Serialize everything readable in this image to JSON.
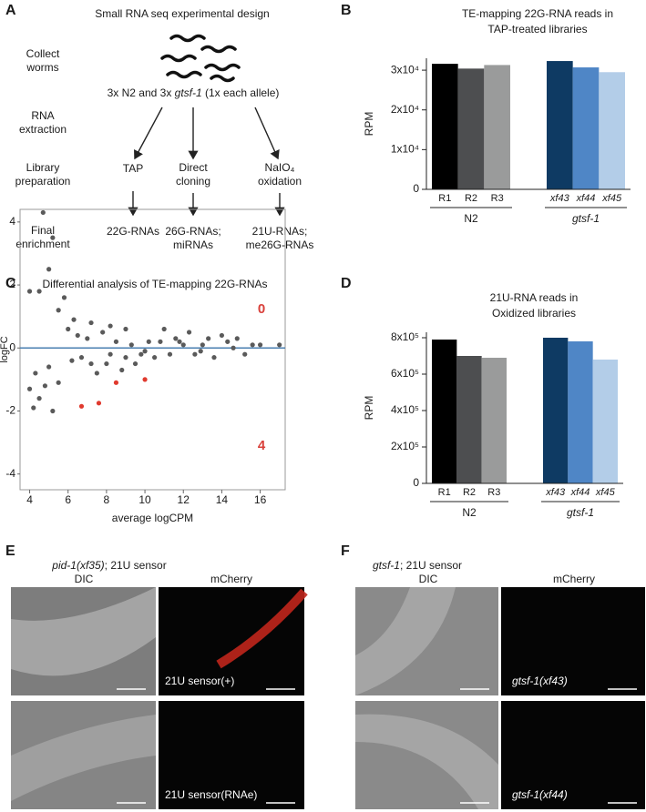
{
  "panel_labels": [
    "A",
    "B",
    "C",
    "D",
    "E",
    "F"
  ],
  "design": {
    "title": "Small RNA seq experimental design",
    "steps": [
      [
        "Collect",
        "worms"
      ],
      [
        "RNA",
        "extraction"
      ],
      [
        "Library",
        "preparation"
      ],
      [
        "Final",
        "enrichment"
      ]
    ],
    "samples": [
      "3x N2 and 3x ",
      "gtsf-1",
      " (1x each allele)"
    ],
    "methods": [
      [
        "TAP"
      ],
      [
        "Direct",
        "cloning"
      ],
      [
        "NaIO₄",
        "oxidation"
      ]
    ],
    "products": [
      [
        "22G-RNAs"
      ],
      [
        "26G-RNAs;",
        "miRNAs"
      ],
      [
        "21U-RNAs;",
        "me26G-RNAs"
      ]
    ]
  },
  "chart_data": [
    {
      "type": "bar",
      "title": [
        "TE-mapping 22G-RNA reads in",
        "TAP-treated libraries"
      ],
      "ylabel": "RPM",
      "ylim": [
        0,
        33000
      ],
      "yticks": [
        0,
        {
          "value": 10000,
          "label": "1x10⁴"
        },
        {
          "value": 20000,
          "label": "2x10⁴"
        },
        {
          "value": 30000,
          "label": "3x10⁴"
        }
      ],
      "groups": [
        {
          "name": "N2",
          "italic": false,
          "categories": [
            "R1",
            "R2",
            "R3"
          ],
          "values": [
            31600,
            30400,
            31300
          ],
          "colors": [
            "#000000",
            "#4d4e50",
            "#9a9b9b"
          ]
        },
        {
          "name": "gtsf-1",
          "italic": true,
          "categories": [
            "xf43",
            "xf44",
            "xf45"
          ],
          "values": [
            32300,
            30700,
            29500
          ],
          "colors": [
            "#0e3a63",
            "#4f86c6",
            "#b3cde8"
          ]
        }
      ]
    },
    {
      "type": "scatter",
      "title": "Differential analysis of TE-mapping 22G-RNAs",
      "xlabel": "average logCPM",
      "ylabel": "logFC",
      "xlim": [
        3.5,
        17.3
      ],
      "ylim": [
        -4.5,
        4.4
      ],
      "xticks": [
        4,
        6,
        8,
        10,
        12,
        14,
        16
      ],
      "yticks": [
        -4,
        -2,
        0,
        2,
        4
      ],
      "reference_line": {
        "y": 0,
        "color": "#4a7fb0"
      },
      "series": [
        {
          "color": "#5a5a5a",
          "x": [
            4.0,
            4.5,
            4.7,
            5.2,
            5.0,
            4.2,
            4.5,
            4.8,
            4.3,
            4.0,
            5.2,
            5.5,
            5.0,
            5.5,
            5.8,
            6.0,
            6.3,
            6.5,
            6.7,
            7.0,
            7.2,
            7.5,
            7.8,
            8.0,
            8.2,
            8.5,
            8.8,
            9.0,
            9.3,
            9.5,
            9.8,
            10.2,
            10.5,
            10.8,
            11.0,
            11.3,
            11.6,
            12.0,
            12.3,
            12.6,
            13.0,
            13.3,
            13.6,
            14.0,
            14.3,
            14.8,
            15.2,
            15.6,
            16.0,
            17.0,
            8.2,
            9.0,
            7.2,
            6.2,
            10.0,
            11.8,
            12.9,
            14.6
          ],
          "values": [
            1.8,
            1.8,
            4.3,
            3.5,
            2.5,
            -1.9,
            -1.6,
            -1.2,
            -0.8,
            -1.3,
            -2.0,
            -1.1,
            -0.6,
            1.2,
            1.6,
            0.6,
            0.9,
            0.4,
            -0.3,
            0.3,
            -0.5,
            -0.8,
            0.5,
            -0.5,
            -0.2,
            0.2,
            -0.7,
            -0.3,
            0.1,
            -0.5,
            -0.2,
            0.2,
            -0.3,
            0.2,
            0.6,
            -0.2,
            0.3,
            0.1,
            0.5,
            -0.2,
            0.1,
            0.3,
            -0.3,
            0.4,
            0.2,
            0.3,
            -0.2,
            0.1,
            0.1,
            0.1,
            0.7,
            0.6,
            0.8,
            -0.4,
            -0.1,
            0.2,
            -0.1,
            0.0
          ]
        },
        {
          "color": "#e03a2e",
          "x": [
            6.7,
            7.6,
            8.5,
            10.0
          ],
          "values": [
            -1.85,
            -1.75,
            -1.1,
            -1.0
          ]
        }
      ],
      "annotations": [
        "0",
        "4"
      ],
      "annotation_color": "#d9403a"
    },
    {
      "type": "bar",
      "title": [
        "21U-RNA reads in",
        "Oxidized libraries"
      ],
      "ylabel": "RPM",
      "ylim": [
        0,
        830000
      ],
      "yticks": [
        0,
        {
          "value": 200000,
          "label": "2x10⁵"
        },
        {
          "value": 400000,
          "label": "4x10⁵"
        },
        {
          "value": 600000,
          "label": "6x10⁵"
        },
        {
          "value": 800000,
          "label": "8x10⁵"
        }
      ],
      "groups": [
        {
          "name": "N2",
          "italic": false,
          "categories": [
            "R1",
            "R2",
            "R3"
          ],
          "values": [
            790000,
            700000,
            690000
          ],
          "colors": [
            "#000000",
            "#4d4e50",
            "#9a9b9b"
          ]
        },
        {
          "name": "gtsf-1",
          "italic": true,
          "categories": [
            "xf43",
            "xf44",
            "xf45"
          ],
          "values": [
            800000,
            780000,
            680000
          ],
          "colors": [
            "#0e3a63",
            "#4f86c6",
            "#b3cde8"
          ]
        }
      ]
    }
  ],
  "imaging": [
    {
      "title": [
        "pid-1(xf35)",
        "; 21U sensor"
      ],
      "columns": [
        "DIC",
        "mCherry"
      ],
      "rows": [
        "21U sensor(+)",
        "21U sensor(RNAe)"
      ]
    },
    {
      "title": [
        "gtsf-1",
        "; 21U sensor"
      ],
      "columns": [
        "DIC",
        "mCherry"
      ],
      "rows": [
        "gtsf-1(xf43)",
        "gtsf-1(xf44)"
      ]
    }
  ]
}
